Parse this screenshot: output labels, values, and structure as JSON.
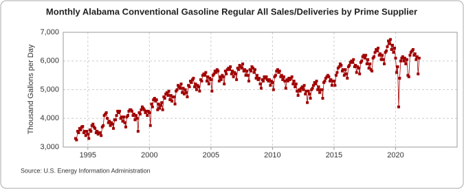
{
  "chart_data": {
    "type": "line",
    "title": "Monthly Alabama Conventional Gasoline Regular All Sales/Deliveries by Prime Supplier",
    "y_label": "Thousand Gallons per Day",
    "source": "Source: U.S. Energy Information Administration",
    "color": "#a00000",
    "grid": true,
    "xlim": [
      1993,
      2025
    ],
    "xticks": [
      1995,
      2000,
      2005,
      2010,
      2015,
      2020
    ],
    "ylim": [
      3000,
      7000
    ],
    "yticks": [
      {
        "value": 3000,
        "label": "3,000"
      },
      {
        "value": 4000,
        "label": "4,000"
      },
      {
        "value": 5000,
        "label": "5,000"
      },
      {
        "value": 6000,
        "label": "6,000"
      },
      {
        "value": 7000,
        "label": "7,000"
      }
    ],
    "x": [
      1994,
      1994.08,
      1994.17,
      1994.25,
      1994.33,
      1994.42,
      1994.5,
      1994.58,
      1994.67,
      1994.75,
      1994.83,
      1994.92,
      1995,
      1995.08,
      1995.17,
      1995.25,
      1995.33,
      1995.42,
      1995.5,
      1995.58,
      1995.67,
      1995.75,
      1995.83,
      1995.92,
      1996,
      1996.08,
      1996.17,
      1996.25,
      1996.33,
      1996.42,
      1996.5,
      1996.58,
      1996.67,
      1996.75,
      1996.83,
      1996.92,
      1997,
      1997.08,
      1997.17,
      1997.25,
      1997.33,
      1997.42,
      1997.5,
      1997.58,
      1997.67,
      1997.75,
      1997.83,
      1997.92,
      1998,
      1998.08,
      1998.17,
      1998.25,
      1998.33,
      1998.42,
      1998.5,
      1998.58,
      1998.67,
      1998.75,
      1998.83,
      1998.92,
      1999,
      1999.08,
      1999.17,
      1999.25,
      1999.33,
      1999.42,
      1999.5,
      1999.58,
      1999.67,
      1999.75,
      1999.83,
      1999.92,
      2000,
      2000.08,
      2000.17,
      2000.25,
      2000.33,
      2000.42,
      2000.5,
      2000.58,
      2000.67,
      2000.75,
      2000.83,
      2000.92,
      2001,
      2001.08,
      2001.17,
      2001.25,
      2001.33,
      2001.42,
      2001.5,
      2001.58,
      2001.67,
      2001.75,
      2001.83,
      2001.92,
      2002,
      2002.08,
      2002.17,
      2002.25,
      2002.33,
      2002.42,
      2002.5,
      2002.58,
      2002.67,
      2002.75,
      2002.83,
      2002.92,
      2003,
      2003.08,
      2003.17,
      2003.25,
      2003.33,
      2003.42,
      2003.5,
      2003.58,
      2003.67,
      2003.75,
      2003.83,
      2003.92,
      2004,
      2004.08,
      2004.17,
      2004.25,
      2004.33,
      2004.42,
      2004.5,
      2004.58,
      2004.67,
      2004.75,
      2004.83,
      2004.92,
      2005,
      2005.08,
      2005.17,
      2005.25,
      2005.33,
      2005.42,
      2005.5,
      2005.58,
      2005.67,
      2005.75,
      2005.83,
      2005.92,
      2006,
      2006.08,
      2006.17,
      2006.25,
      2006.33,
      2006.42,
      2006.5,
      2006.58,
      2006.67,
      2006.75,
      2006.83,
      2006.92,
      2007,
      2007.08,
      2007.17,
      2007.25,
      2007.33,
      2007.42,
      2007.5,
      2007.58,
      2007.67,
      2007.75,
      2007.83,
      2007.92,
      2008,
      2008.08,
      2008.17,
      2008.25,
      2008.33,
      2008.42,
      2008.5,
      2008.58,
      2008.67,
      2008.75,
      2008.83,
      2008.92,
      2009,
      2009.08,
      2009.17,
      2009.25,
      2009.33,
      2009.42,
      2009.5,
      2009.58,
      2009.67,
      2009.75,
      2009.83,
      2009.92,
      2010,
      2010.08,
      2010.17,
      2010.25,
      2010.33,
      2010.42,
      2010.5,
      2010.58,
      2010.67,
      2010.75,
      2010.83,
      2010.92,
      2011,
      2011.08,
      2011.17,
      2011.25,
      2011.33,
      2011.42,
      2011.5,
      2011.58,
      2011.67,
      2011.75,
      2011.83,
      2011.92,
      2012,
      2012.08,
      2012.17,
      2012.25,
      2012.33,
      2012.42,
      2012.5,
      2012.58,
      2012.67,
      2012.75,
      2012.83,
      2012.92,
      2013,
      2013.08,
      2013.17,
      2013.25,
      2013.33,
      2013.42,
      2013.5,
      2013.58,
      2013.67,
      2013.75,
      2013.83,
      2013.92,
      2014,
      2014.08,
      2014.17,
      2014.25,
      2014.33,
      2014.42,
      2014.5,
      2014.58,
      2014.67,
      2014.75,
      2014.83,
      2014.92,
      2015,
      2015.08,
      2015.17,
      2015.25,
      2015.33,
      2015.42,
      2015.5,
      2015.58,
      2015.67,
      2015.75,
      2015.83,
      2015.92,
      2016,
      2016.08,
      2016.17,
      2016.25,
      2016.33,
      2016.42,
      2016.5,
      2016.58,
      2016.67,
      2016.75,
      2016.83,
      2016.92,
      2017,
      2017.08,
      2017.17,
      2017.25,
      2017.33,
      2017.42,
      2017.5,
      2017.58,
      2017.67,
      2017.75,
      2017.83,
      2017.92,
      2018,
      2018.08,
      2018.17,
      2018.25,
      2018.33,
      2018.42,
      2018.5,
      2018.58,
      2018.67,
      2018.75,
      2018.83,
      2018.92,
      2019,
      2019.08,
      2019.17,
      2019.25,
      2019.33,
      2019.42,
      2019.5,
      2019.58,
      2019.67,
      2019.75,
      2019.83,
      2019.92,
      2020,
      2020.08,
      2020.17,
      2020.25,
      2020.33,
      2020.42,
      2020.5,
      2020.58,
      2020.67,
      2020.75,
      2020.83,
      2020.92,
      2021,
      2021.08,
      2021.17,
      2021.25,
      2021.33,
      2021.42,
      2021.5,
      2021.58,
      2021.67,
      2021.75,
      2021.83,
      2021.92
    ],
    "values": [
      3300,
      3250,
      3550,
      3500,
      3650,
      3600,
      3700,
      3720,
      3500,
      3550,
      3400,
      3550,
      3450,
      3300,
      3600,
      3550,
      3750,
      3800,
      3700,
      3650,
      3500,
      3550,
      3450,
      3500,
      3500,
      3400,
      3700,
      3750,
      4100,
      4150,
      4200,
      4000,
      3850,
      3900,
      3750,
      3850,
      3800,
      3650,
      3950,
      3950,
      4100,
      4250,
      4200,
      4250,
      4000,
      4050,
      3900,
      4050,
      3850,
      3700,
      4050,
      4100,
      4250,
      4300,
      4300,
      4250,
      4100,
      4150,
      3950,
      4100,
      4000,
      3550,
      4200,
      4150,
      4300,
      4400,
      4350,
      4300,
      4200,
      4250,
      4100,
      4250,
      4200,
      3750,
      4500,
      4400,
      4650,
      4700,
      4600,
      4650,
      4300,
      4500,
      4350,
      4450,
      4550,
      4300,
      4750,
      4700,
      4850,
      4900,
      4800,
      4950,
      4650,
      4800,
      4600,
      4750,
      4750,
      4500,
      4950,
      5000,
      5150,
      5100,
      5050,
      5200,
      4900,
      5050,
      4850,
      5000,
      4900,
      4750,
      5150,
      5100,
      5300,
      5250,
      5350,
      5400,
      5100,
      5200,
      5000,
      5150,
      5100,
      4950,
      5350,
      5300,
      5500,
      5550,
      5500,
      5600,
      5300,
      5450,
      5200,
      5400,
      5350,
      4950,
      5500,
      5550,
      5650,
      5600,
      5700,
      5650,
      5300,
      5450,
      5350,
      5500,
      5450,
      5200,
      5650,
      5550,
      5700,
      5750,
      5700,
      5800,
      5550,
      5650,
      5450,
      5600,
      5550,
      5350,
      5750,
      5700,
      5850,
      5800,
      5750,
      5900,
      5650,
      5700,
      5500,
      5650,
      5500,
      5300,
      5700,
      5650,
      5800,
      5750,
      5600,
      5700,
      5400,
      5500,
      5350,
      5400,
      5200,
      5050,
      5350,
      5300,
      5450,
      5400,
      5450,
      5350,
      5300,
      5350,
      5150,
      5300,
      5250,
      5000,
      5450,
      5500,
      5650,
      5700,
      5600,
      5650,
      5450,
      5500,
      5350,
      5450,
      5300,
      5050,
      5350,
      5300,
      5400,
      5350,
      5400,
      5450,
      5200,
      5300,
      5100,
      5200,
      4950,
      4800,
      5000,
      4950,
      5050,
      5100,
      5000,
      5150,
      4850,
      4950,
      4550,
      4950,
      4850,
      4700,
      5000,
      5050,
      5150,
      5250,
      5200,
      5300,
      5000,
      5100,
      4900,
      5000,
      5000,
      4700,
      5250,
      5300,
      5400,
      5450,
      5500,
      5450,
      5300,
      5350,
      5150,
      5300,
      5300,
      5150,
      5500,
      5600,
      5750,
      5800,
      5900,
      5850,
      5650,
      5700,
      5500,
      5700,
      5550,
      5400,
      5800,
      5850,
      5950,
      6000,
      5950,
      6050,
      5800,
      5850,
      5600,
      5800,
      5750,
      5550,
      5950,
      6000,
      6150,
      6200,
      6100,
      6200,
      5900,
      6050,
      5750,
      5900,
      5700,
      5650,
      6100,
      6150,
      6300,
      6400,
      6350,
      6450,
      6200,
      6250,
      6050,
      6200,
      6050,
      5900,
      6300,
      6350,
      6500,
      6700,
      6600,
      6750,
      6400,
      6550,
      6300,
      6450,
      6100,
      5600,
      5800,
      4400,
      5400,
      6000,
      6100,
      6150,
      6000,
      6100,
      5900,
      6050,
      5500,
      5450,
      6200,
      6300,
      6350,
      6400,
      6200,
      6250,
      6050,
      6150,
      5550,
      6100
    ]
  }
}
